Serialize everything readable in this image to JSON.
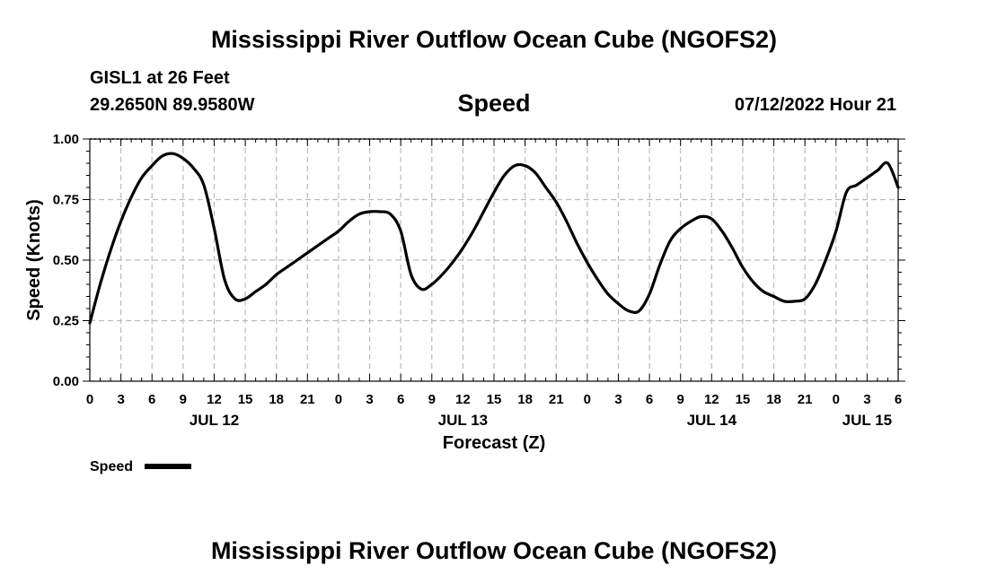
{
  "header": {
    "title": "Mississippi River Outflow Ocean Cube (NGOFS2)",
    "station": "GISL1 at 26 Feet",
    "coordinates": "29.2650N  89.9580W",
    "chart_heading": "Speed",
    "datetime": "07/12/2022 Hour 21"
  },
  "footer": {
    "title": "Mississippi River Outflow Ocean Cube (NGOFS2)"
  },
  "colors": {
    "line": "#000000",
    "grid": "#bbbbbb"
  },
  "chart_data": {
    "type": "line",
    "title": "Speed",
    "xlabel": "Forecast (Z)",
    "ylabel": "Speed (Knots)",
    "xlim": [
      0,
      78
    ],
    "ylim": [
      0,
      1.0
    ],
    "grid": true,
    "x_tick_labels": [
      "0",
      "3",
      "6",
      "9",
      "12",
      "15",
      "18",
      "21",
      "0",
      "3",
      "6",
      "9",
      "12",
      "15",
      "18",
      "21",
      "0",
      "3",
      "6",
      "9",
      "12",
      "15",
      "18",
      "21",
      "0",
      "3",
      "6"
    ],
    "date_labels": [
      {
        "hour": 12,
        "label": "JUL 12"
      },
      {
        "hour": 36,
        "label": "JUL 13"
      },
      {
        "hour": 60,
        "label": "JUL 14"
      },
      {
        "hour": 75,
        "label": "JUL 15"
      }
    ],
    "y_ticks": [
      0.0,
      0.25,
      0.5,
      0.75,
      1.0
    ],
    "y_tick_labels": [
      "0.00",
      "0.25",
      "0.50",
      "0.75",
      "1.00"
    ],
    "legend": {
      "label": "Speed",
      "position": "bottom-left"
    },
    "series": [
      {
        "name": "Speed",
        "x": [
          0,
          1,
          2,
          3,
          4,
          5,
          6,
          7,
          8,
          9,
          10,
          11,
          12,
          13,
          14,
          15,
          16,
          17,
          18,
          19,
          20,
          21,
          22,
          23,
          24,
          25,
          26,
          27,
          28,
          29,
          30,
          31,
          32,
          33,
          34,
          35,
          36,
          37,
          38,
          39,
          40,
          41,
          42,
          43,
          44,
          45,
          46,
          47,
          48,
          49,
          50,
          51,
          52,
          53,
          54,
          55,
          56,
          57,
          58,
          59,
          60,
          61,
          62,
          63,
          64,
          65,
          66,
          67,
          68,
          69,
          70,
          71,
          72,
          73,
          74,
          75,
          76,
          77,
          78
        ],
        "values": [
          0.24,
          0.4,
          0.54,
          0.66,
          0.76,
          0.84,
          0.89,
          0.93,
          0.94,
          0.92,
          0.88,
          0.81,
          0.63,
          0.42,
          0.34,
          0.34,
          0.37,
          0.4,
          0.44,
          0.47,
          0.5,
          0.53,
          0.56,
          0.59,
          0.62,
          0.66,
          0.69,
          0.7,
          0.7,
          0.69,
          0.62,
          0.44,
          0.38,
          0.4,
          0.44,
          0.49,
          0.55,
          0.62,
          0.7,
          0.78,
          0.85,
          0.89,
          0.89,
          0.86,
          0.8,
          0.74,
          0.66,
          0.57,
          0.49,
          0.42,
          0.36,
          0.32,
          0.29,
          0.29,
          0.36,
          0.48,
          0.58,
          0.63,
          0.66,
          0.68,
          0.67,
          0.62,
          0.55,
          0.47,
          0.41,
          0.37,
          0.35,
          0.33,
          0.33,
          0.34,
          0.4,
          0.5,
          0.62,
          0.78,
          0.81,
          0.84,
          0.87,
          0.9,
          0.8
        ]
      }
    ]
  }
}
